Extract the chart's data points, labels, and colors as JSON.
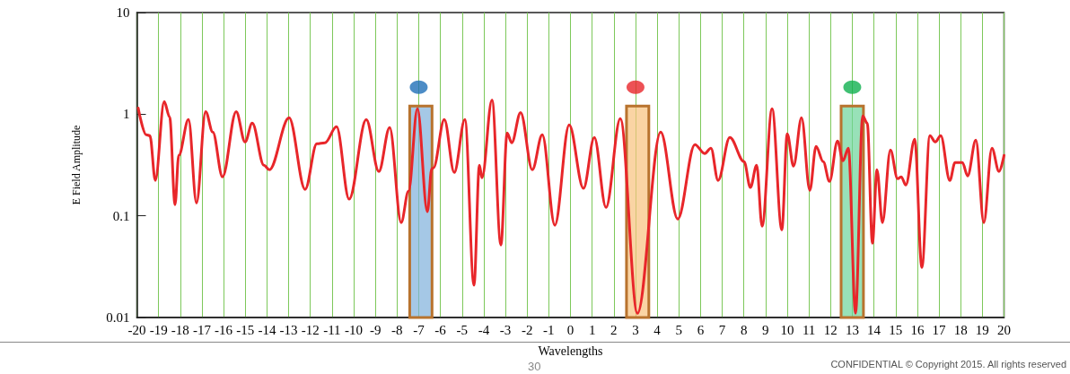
{
  "chart_data": {
    "type": "line",
    "xlabel": "Wavelengths",
    "ylabel": "E Field Amplitude",
    "log": "y",
    "grid": "x",
    "marker": "none",
    "line_style": "solid",
    "xlim": [
      -20,
      20
    ],
    "xticks": [
      -20,
      -19,
      -18,
      -17,
      -16,
      -15,
      -14,
      -13,
      -12,
      -11,
      -10,
      -9,
      -8,
      -7,
      -6,
      -5,
      -4,
      -3,
      -2,
      -1,
      0,
      1,
      2,
      3,
      4,
      5,
      6,
      7,
      8,
      9,
      10,
      11,
      12,
      13,
      14,
      15,
      16,
      17,
      18,
      19,
      20
    ],
    "ylim": [
      0.01,
      10
    ],
    "yticks": [
      0.01,
      0.1,
      1,
      10
    ],
    "series": [
      {
        "color": "#e8262a",
        "x": [
          -19.94,
          -19.57,
          -19.4,
          -19.15,
          -18.74,
          -18.49,
          -18.24,
          -18.07,
          -17.62,
          -17.25,
          -16.83,
          -16.5,
          -16.05,
          -15.42,
          -15.01,
          -14.68,
          -14.14,
          -13.89,
          -12.98,
          -12.24,
          -11.7,
          -11.33,
          -10.79,
          -10.21,
          -9.42,
          -8.84,
          -8.34,
          -7.81,
          -7.47,
          -7.06,
          -6.6,
          -6.4,
          -6.32,
          -5.82,
          -5.36,
          -4.87,
          -4.45,
          -4.2,
          -4.08,
          -3.62,
          -3.21,
          -2.92,
          -2.71,
          -2.3,
          -1.76,
          -1.3,
          -0.72,
          -0.06,
          0.6,
          1.1,
          1.64,
          2.3,
          3.09,
          4.16,
          4.95,
          5.74,
          6.19,
          6.48,
          6.81,
          7.35,
          8.01,
          8.3,
          8.59,
          8.84,
          9.3,
          9.75,
          10.0,
          10.29,
          10.66,
          11.04,
          11.33,
          11.66,
          11.95,
          12.32,
          12.57,
          12.82,
          13.15,
          13.48,
          13.69,
          13.93,
          14.14,
          14.39,
          14.76,
          15.09,
          15.26,
          15.47,
          15.88,
          16.21,
          16.58,
          16.83,
          17.08,
          17.5,
          17.74,
          18.08,
          18.32,
          18.7,
          19.07,
          19.44,
          19.77,
          20.0
        ],
        "values": [
          1.15,
          0.627,
          0.615,
          0.223,
          1.33,
          0.94,
          0.129,
          0.393,
          0.885,
          0.134,
          1.06,
          0.667,
          0.242,
          1.06,
          0.533,
          0.816,
          0.315,
          0.284,
          0.922,
          0.182,
          0.512,
          0.523,
          0.753,
          0.146,
          0.885,
          0.273,
          0.738,
          0.0859,
          0.175,
          1.13,
          0.11,
          0.29,
          0.296,
          0.885,
          0.267,
          0.885,
          0.0208,
          0.315,
          0.237,
          1.38,
          0.0517,
          0.653,
          0.523,
          1.04,
          0.284,
          0.627,
          0.0808,
          0.784,
          0.186,
          0.59,
          0.121,
          0.904,
          0.011,
          0.667,
          0.0931,
          0.502,
          0.41,
          0.463,
          0.223,
          0.59,
          0.341,
          0.19,
          0.315,
          0.0792,
          1.13,
          0.073,
          0.64,
          0.308,
          0.922,
          0.178,
          0.482,
          0.341,
          0.218,
          0.544,
          0.348,
          0.463,
          0.011,
          0.96,
          0.816,
          0.0538,
          0.284,
          0.0859,
          0.444,
          0.232,
          0.242,
          0.201,
          0.567,
          0.0311,
          0.615,
          0.533,
          0.615,
          0.223,
          0.334,
          0.334,
          0.247,
          0.555,
          0.0859,
          0.463,
          0.273,
          0.393
        ]
      },
      {
        "type": "bar",
        "x": [
          -6.9,
          3.1,
          13.0
        ],
        "values": [
          1.2,
          1.2,
          1.2
        ],
        "colors": [
          "#7fb0dc",
          "#f8c27e",
          "#6cd49a"
        ]
      },
      {
        "type": "scatter",
        "marker": "circle",
        "x": [
          -7,
          3,
          13
        ],
        "values": [
          1.84,
          1.84,
          1.84
        ],
        "colors": [
          "#1f6fb8",
          "#e8262a",
          "#10b050"
        ]
      }
    ],
    "annotations": [
      "30",
      "CONFIDENTIAL © Copyright 2015. All rights reserved"
    ]
  }
}
